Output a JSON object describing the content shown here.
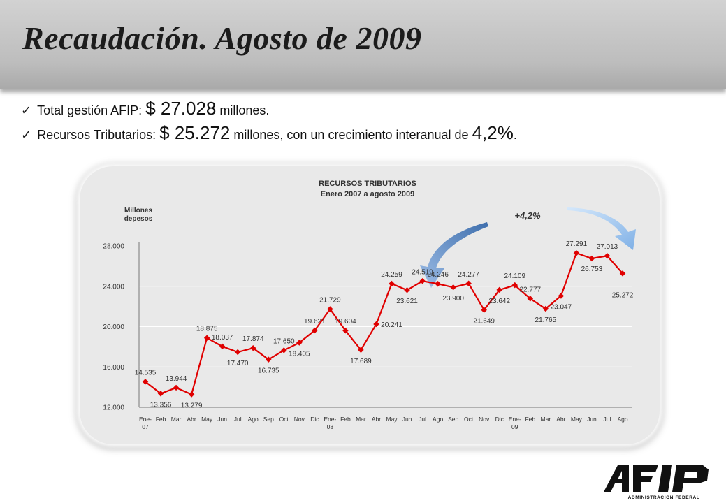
{
  "header": {
    "title": "Recaudación. Agosto de 2009"
  },
  "bullets": [
    {
      "text_1": "Total gestión AFIP:",
      "value": "$ 27.028",
      "text_2": "millones."
    },
    {
      "text_1": "Recursos Tributarios:",
      "value": "$ 25.272",
      "text_2": "millones, con un crecimiento interanual de",
      "value_2": "4,2%",
      "text_3": "."
    }
  ],
  "chart_data": {
    "type": "line",
    "title": "RECURSOS TRIBUTARIOS",
    "subtitle": "Enero 2007 a agosto 2009",
    "ylabel_1": "Millones",
    "ylabel_2": "depesos",
    "ylim": [
      12000,
      28000
    ],
    "yticks": [
      "28.000",
      "24.000",
      "20.000",
      "16.000",
      "12.000"
    ],
    "ytick_values": [
      28000,
      24000,
      20000,
      16000,
      12000
    ],
    "gridlines": [
      24000,
      20000,
      16000
    ],
    "categories": [
      "Ene-07",
      "Feb",
      "Mar",
      "Abr",
      "May",
      "Jun",
      "Jul",
      "Ago",
      "Sep",
      "Oct",
      "Nov",
      "Dic",
      "Ene-08",
      "Feb",
      "Mar",
      "Abr",
      "May",
      "Jun",
      "Jul",
      "Ago",
      "Sep",
      "Oct",
      "Nov",
      "Dic",
      "Ene-09",
      "Feb",
      "Mar",
      "Abr",
      "May",
      "Jun",
      "Jul",
      "Ago"
    ],
    "series": [
      {
        "color": "#e00000",
        "values": [
          14535,
          13356,
          13944,
          13279,
          18875,
          18037,
          17470,
          17874,
          16735,
          17650,
          18405,
          19621,
          21729,
          19604,
          17689,
          20241,
          24259,
          23621,
          24519,
          24246,
          23900,
          24277,
          21649,
          23642,
          24109,
          22777,
          21765,
          23047,
          27291,
          26753,
          27013,
          25272
        ],
        "labels": [
          "14.535",
          "13.356",
          "13.944",
          "13.279",
          "18.875",
          "18.037",
          "17.470",
          "17.874",
          "16.735",
          "17.650",
          "18.405",
          "19.621",
          "21.729",
          "19.604",
          "17.689",
          "20.241",
          "24.259",
          "23.621",
          "24.519",
          "24.246",
          "23.900",
          "24.277",
          "21.649",
          "23.642",
          "24.109",
          "22.777",
          "21.765",
          "23.047",
          "27.291",
          "26.753",
          "27.013",
          "25.272"
        ]
      }
    ],
    "annotation": "+4,2%",
    "colors": {
      "line": "#e00000",
      "arrow_left": "#5b85bd",
      "arrow_right": "#8ab8ea",
      "card": "#e9e9e9"
    }
  },
  "logo": {
    "text": "AFIP",
    "subtitle": "ADMINISTRACION FEDERAL"
  }
}
